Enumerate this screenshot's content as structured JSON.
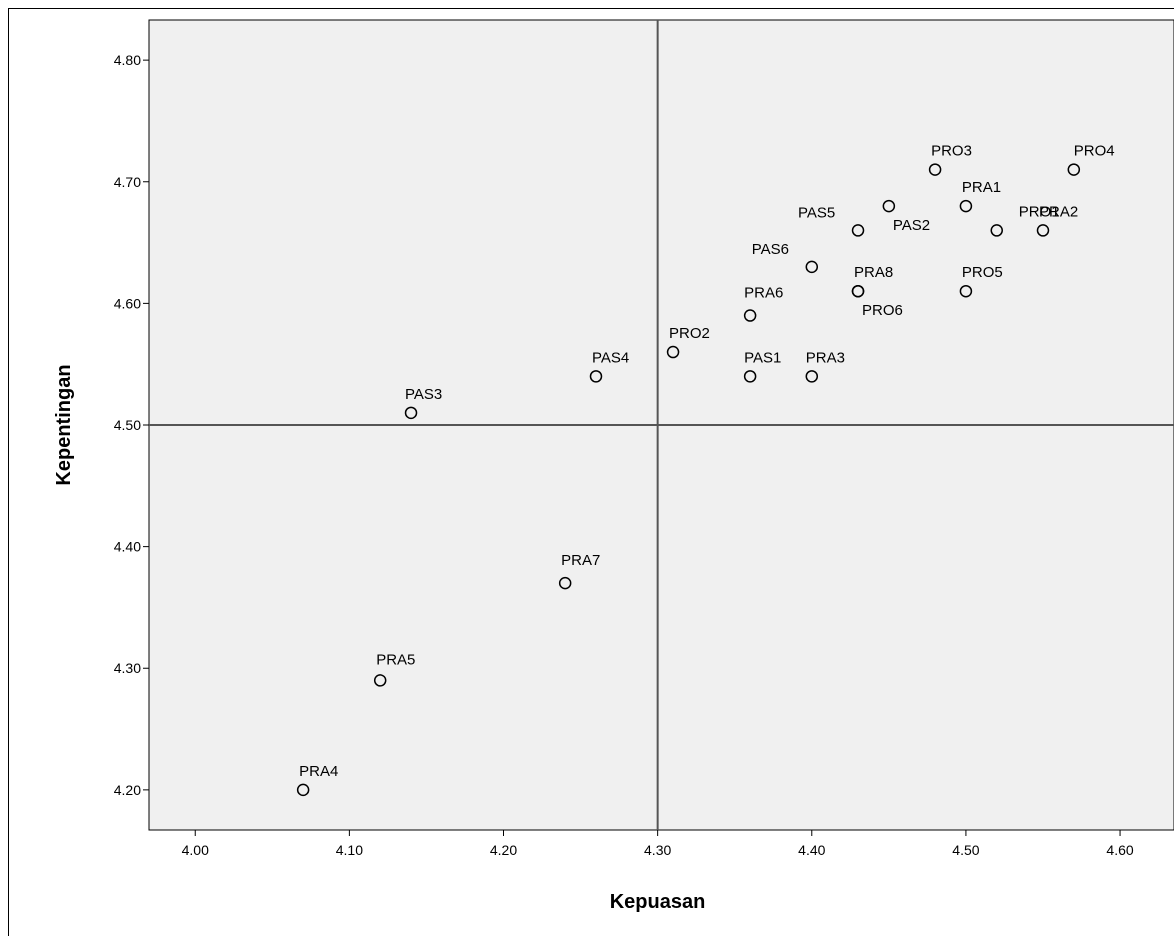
{
  "chart_data": {
    "type": "scatter",
    "xlabel": "Kepuasan",
    "ylabel": "Kepentingan",
    "xlim": [
      3.97,
      4.635
    ],
    "ylim": [
      4.167,
      4.833
    ],
    "x_ticks": [
      "4.00",
      "4.10",
      "4.20",
      "4.30",
      "4.40",
      "4.50",
      "4.60"
    ],
    "y_ticks": [
      "4.20",
      "4.30",
      "4.40",
      "4.50",
      "4.60",
      "4.70",
      "4.80"
    ],
    "reference_lines": {
      "x": 4.3,
      "y": 4.5
    },
    "grid": false,
    "colors": {
      "plot_background": "#f0f0f0",
      "marker": "#000000",
      "reference_line": "#555555"
    },
    "points": [
      {
        "label": "PRO3",
        "x": 4.48,
        "y": 4.71
      },
      {
        "label": "PRO4",
        "x": 4.57,
        "y": 4.71
      },
      {
        "label": "PRA1",
        "x": 4.5,
        "y": 4.68
      },
      {
        "label": "PAS2",
        "x": 4.45,
        "y": 4.68
      },
      {
        "label": "PAS5",
        "x": 4.43,
        "y": 4.66
      },
      {
        "label": "PRO1",
        "x": 4.52,
        "y": 4.66
      },
      {
        "label": "PRA2",
        "x": 4.55,
        "y": 4.66
      },
      {
        "label": "PAS6",
        "x": 4.4,
        "y": 4.63
      },
      {
        "label": "PRA8",
        "x": 4.43,
        "y": 4.61
      },
      {
        "label": "PRO6",
        "x": 4.43,
        "y": 4.61
      },
      {
        "label": "PRO5",
        "x": 4.5,
        "y": 4.61
      },
      {
        "label": "PRA6",
        "x": 4.36,
        "y": 4.59
      },
      {
        "label": "PRO2",
        "x": 4.31,
        "y": 4.56
      },
      {
        "label": "PAS4",
        "x": 4.26,
        "y": 4.54
      },
      {
        "label": "PAS1",
        "x": 4.36,
        "y": 4.54
      },
      {
        "label": "PRA3",
        "x": 4.4,
        "y": 4.54
      },
      {
        "label": "PAS3",
        "x": 4.14,
        "y": 4.51
      },
      {
        "label": "PRA7",
        "x": 4.24,
        "y": 4.37
      },
      {
        "label": "PRA5",
        "x": 4.12,
        "y": 4.29
      },
      {
        "label": "PRA4",
        "x": 4.07,
        "y": 4.2
      }
    ]
  }
}
